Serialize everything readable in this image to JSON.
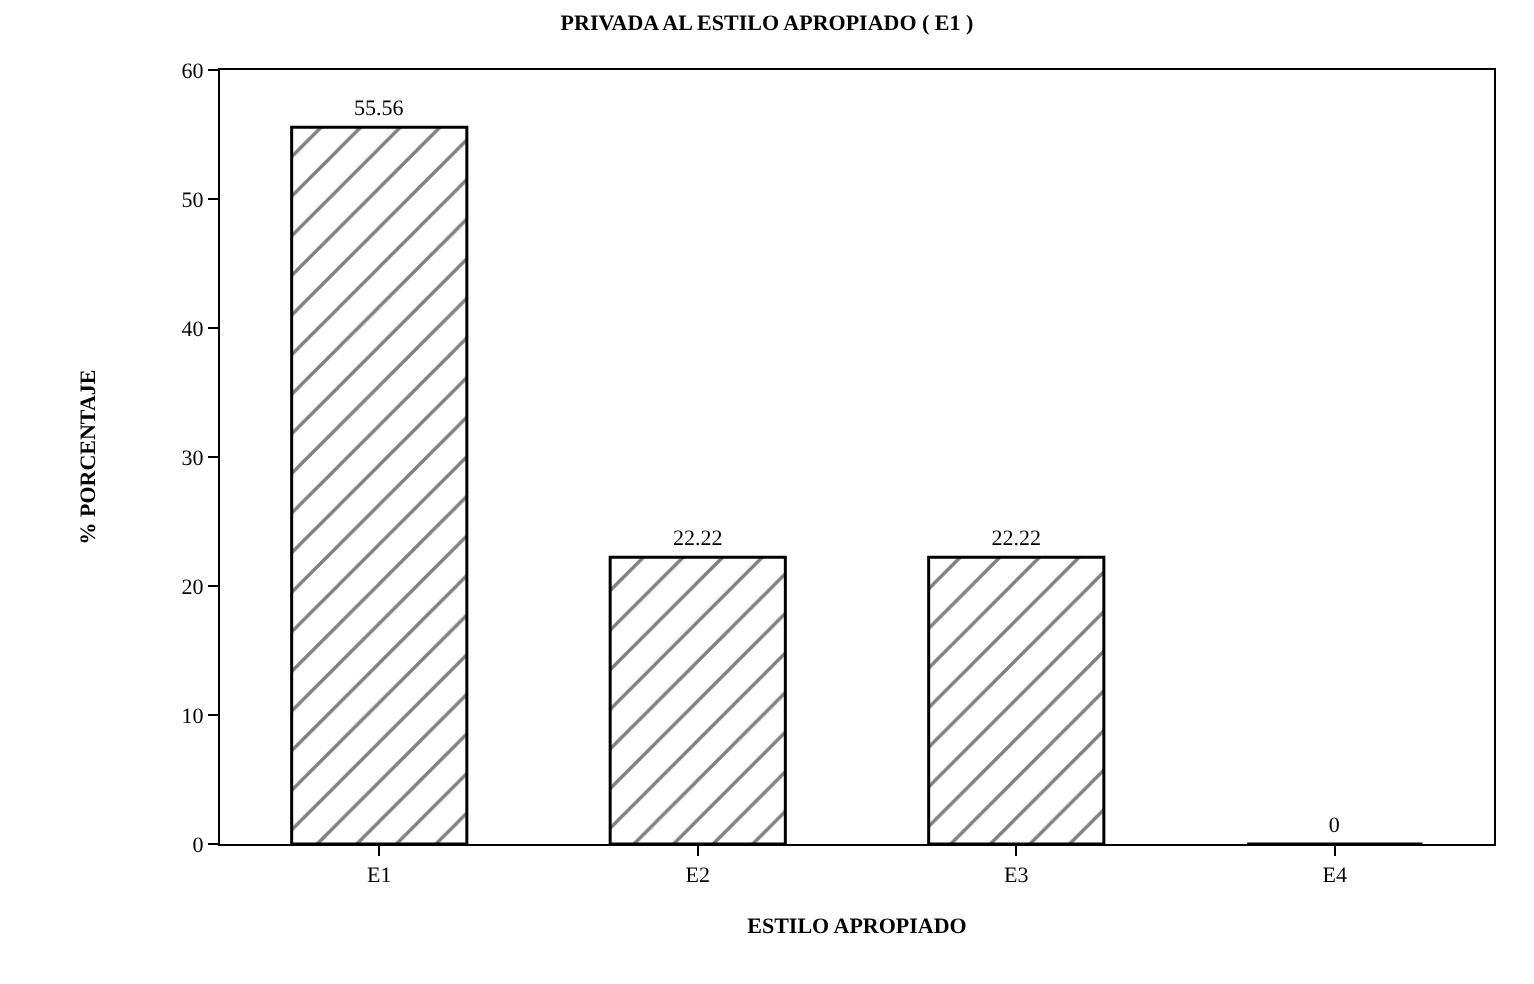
{
  "chart_data": {
    "type": "bar",
    "title": "PRIVADA AL ESTILO APROPIADO ( E1 )",
    "categories": [
      "E1",
      "E2",
      "E3",
      "E4"
    ],
    "values": [
      55.56,
      22.22,
      22.22,
      0
    ],
    "color": "#000000",
    "xlabel": "ESTILO APROPIADO",
    "ylabel": "% PORCENTAJE",
    "ylim": [
      0,
      60
    ],
    "yticks": [
      0,
      10,
      20,
      30,
      40,
      50,
      60
    ],
    "data_labels": true
  }
}
